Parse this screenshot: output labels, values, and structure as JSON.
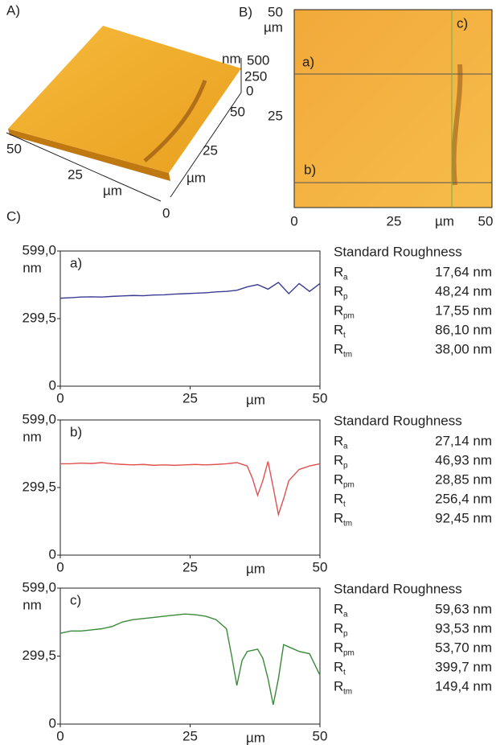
{
  "panel_a": {
    "label": "A)",
    "z_unit": "nm",
    "z_ticks": [
      "500",
      "250",
      "0"
    ],
    "x_ticks": [
      "50",
      "25"
    ],
    "x_unit": "µm",
    "y_ticks": [
      "50",
      "25",
      "0"
    ],
    "y_unit": "µm"
  },
  "panel_b": {
    "label": "B)",
    "y_ticks": [
      "50",
      "25"
    ],
    "y_unit": "µm",
    "x_ticks": [
      "0",
      "25",
      "50"
    ],
    "x_unit": "µm",
    "line_labels": [
      "a)",
      "b)",
      "c)"
    ]
  },
  "panel_c": {
    "label": "C)"
  },
  "chart_data": [
    {
      "type": "line",
      "title": "a)",
      "x_label": "µm",
      "y_label": "nm",
      "x": [
        0,
        2,
        4,
        6,
        8,
        10,
        12,
        14,
        16,
        18,
        20,
        22,
        24,
        26,
        28,
        30,
        32,
        34,
        36,
        38,
        40,
        42,
        44,
        46,
        48,
        50
      ],
      "series": [
        {
          "color": "#3b3b94",
          "values": [
            390,
            392,
            395,
            396,
            395,
            398,
            400,
            402,
            401,
            404,
            405,
            408,
            410,
            412,
            414,
            418,
            420,
            425,
            440,
            450,
            430,
            460,
            410,
            455,
            420,
            455
          ]
        }
      ],
      "xlim": [
        0,
        50
      ],
      "ylim": [
        0,
        599
      ],
      "xticks": [
        0,
        25,
        50
      ],
      "yticks": [
        0,
        {
          "value": 299.5,
          "label": "299,5"
        },
        {
          "value": 599,
          "label": "599,0"
        }
      ],
      "roughness": {
        "title": "Standard Roughness",
        "rows": [
          {
            "symbol": "R",
            "sub": "a",
            "value": "17,64 nm"
          },
          {
            "symbol": "R",
            "sub": "p",
            "value": "48,24 nm"
          },
          {
            "symbol": "R",
            "sub": "pm",
            "value": "17,55 nm"
          },
          {
            "symbol": "R",
            "sub": "t",
            "value": "86,10 nm"
          },
          {
            "symbol": "R",
            "sub": "tm",
            "value": "38,00 nm"
          }
        ]
      }
    },
    {
      "type": "line",
      "title": "b)",
      "x_label": "µm",
      "y_label": "nm",
      "x": [
        0,
        2,
        4,
        6,
        8,
        10,
        12,
        14,
        16,
        18,
        20,
        22,
        24,
        26,
        28,
        30,
        32,
        34,
        36,
        37,
        38,
        39,
        40,
        41,
        42,
        43,
        44,
        46,
        48,
        50
      ],
      "series": [
        {
          "color": "#e05050",
          "values": [
            405,
            405,
            408,
            406,
            410,
            405,
            402,
            400,
            402,
            398,
            400,
            398,
            400,
            402,
            400,
            402,
            405,
            410,
            395,
            340,
            265,
            330,
            415,
            300,
            180,
            250,
            330,
            380,
            395,
            405
          ]
        }
      ],
      "xlim": [
        0,
        50
      ],
      "ylim": [
        0,
        599
      ],
      "xticks": [
        0,
        25,
        50
      ],
      "yticks": [
        0,
        {
          "value": 299.5,
          "label": "299,5"
        },
        {
          "value": 599,
          "label": "599,0"
        }
      ],
      "roughness": {
        "title": "Standard Roughness",
        "rows": [
          {
            "symbol": "R",
            "sub": "a",
            "value": "27,14 nm"
          },
          {
            "symbol": "R",
            "sub": "p",
            "value": "46,93 nm"
          },
          {
            "symbol": "R",
            "sub": "pm",
            "value": "28,85 nm"
          },
          {
            "symbol": "R",
            "sub": "t",
            "value": "256,4 nm"
          },
          {
            "symbol": "R",
            "sub": "tm",
            "value": "92,45 nm"
          }
        ]
      }
    },
    {
      "type": "line",
      "title": "c)",
      "x_label": "µm",
      "y_label": "nm",
      "x": [
        0,
        2,
        4,
        6,
        8,
        10,
        12,
        14,
        16,
        18,
        20,
        22,
        24,
        26,
        28,
        30,
        32,
        33,
        34,
        35,
        36,
        38,
        39,
        40,
        41,
        42,
        43,
        44,
        46,
        48,
        50
      ],
      "series": [
        {
          "color": "#3a8a3a",
          "values": [
            400,
            410,
            410,
            415,
            420,
            430,
            450,
            460,
            465,
            470,
            475,
            480,
            485,
            482,
            475,
            460,
            420,
            300,
            170,
            280,
            320,
            330,
            290,
            200,
            85,
            200,
            350,
            340,
            320,
            310,
            215
          ]
        }
      ],
      "xlim": [
        0,
        50
      ],
      "ylim": [
        0,
        599
      ],
      "xticks": [
        0,
        25,
        50
      ],
      "yticks": [
        0,
        {
          "value": 299.5,
          "label": "299,5"
        },
        {
          "value": 599,
          "label": "599,0"
        }
      ],
      "roughness": {
        "title": "Standard Roughness",
        "rows": [
          {
            "symbol": "R",
            "sub": "a",
            "value": "59,63 nm"
          },
          {
            "symbol": "R",
            "sub": "p",
            "value": "93,53 nm"
          },
          {
            "symbol": "R",
            "sub": "pm",
            "value": "53,70 nm"
          },
          {
            "symbol": "R",
            "sub": "t",
            "value": "399,7 nm"
          },
          {
            "symbol": "R",
            "sub": "tm",
            "value": "149,4 nm"
          }
        ]
      }
    }
  ]
}
